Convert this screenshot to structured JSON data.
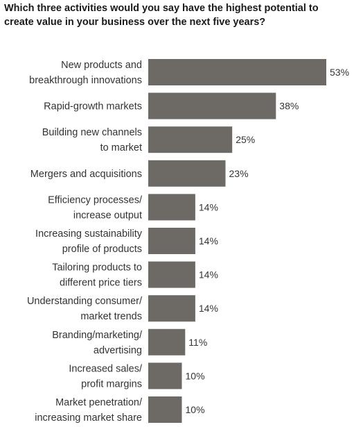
{
  "chart_data": {
    "type": "bar",
    "orientation": "horizontal",
    "title": "Which three activities would you say have the highest potential to create value in your business over the next five years?",
    "categories": [
      [
        "New products and",
        "breakthrough innovations"
      ],
      [
        "Rapid-growth markets"
      ],
      [
        "Building new channels",
        "to market"
      ],
      [
        "Mergers and acquisitions"
      ],
      [
        "Efficiency processes/",
        "increase output"
      ],
      [
        "Increasing sustainability",
        "profile of products"
      ],
      [
        "Tailoring products to",
        "different price tiers"
      ],
      [
        "Understanding consumer/",
        "market trends"
      ],
      [
        "Branding/marketing/",
        "advertising"
      ],
      [
        "Increased sales/",
        "profit margins"
      ],
      [
        "Market penetration/",
        "increasing market share"
      ]
    ],
    "values": [
      53,
      38,
      25,
      23,
      14,
      14,
      14,
      14,
      11,
      10,
      10
    ],
    "value_labels": [
      "53%",
      "38%",
      "25%",
      "23%",
      "14%",
      "14%",
      "14%",
      "14%",
      "11%",
      "10%",
      "10%"
    ],
    "xlim": [
      0,
      53
    ],
    "bar_color": "#6d6a66",
    "grid": false,
    "legend": "none"
  }
}
